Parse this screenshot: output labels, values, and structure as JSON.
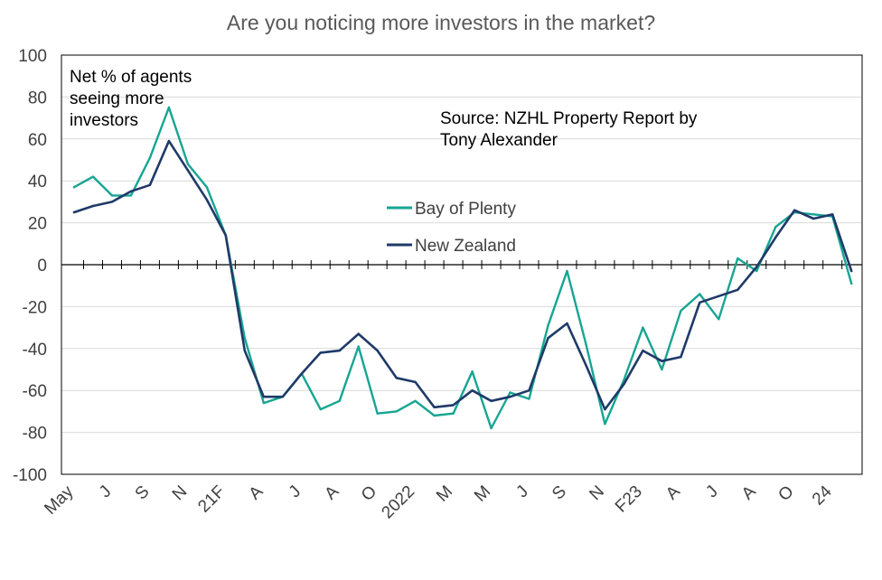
{
  "chart_data": {
    "type": "line",
    "title": "Are you noticing more investors in the market?",
    "xlabel": "",
    "ylabel": "",
    "ylim": [
      -100,
      100
    ],
    "yticks": [
      100,
      80,
      60,
      40,
      20,
      0,
      -20,
      -40,
      -60,
      -80,
      -100
    ],
    "grid": true,
    "legend_position": "center",
    "x_tick_labels": [
      {
        "label": "May",
        "index": 0
      },
      {
        "label": "J",
        "index": 2
      },
      {
        "label": "S",
        "index": 4
      },
      {
        "label": "N",
        "index": 6
      },
      {
        "label": "21F",
        "index": 8
      },
      {
        "label": "A",
        "index": 10
      },
      {
        "label": "J",
        "index": 12
      },
      {
        "label": "A",
        "index": 14
      },
      {
        "label": "O",
        "index": 16
      },
      {
        "label": "2022",
        "index": 18
      },
      {
        "label": "M",
        "index": 20
      },
      {
        "label": "M",
        "index": 22
      },
      {
        "label": "J",
        "index": 24
      },
      {
        "label": "S",
        "index": 26
      },
      {
        "label": "N",
        "index": 28
      },
      {
        "label": "F23",
        "index": 30
      },
      {
        "label": "A",
        "index": 32
      },
      {
        "label": "J",
        "index": 34
      },
      {
        "label": "A",
        "index": 36
      },
      {
        "label": "O",
        "index": 38
      },
      {
        "label": "24",
        "index": 40
      }
    ],
    "series": [
      {
        "name": "Bay of Plenty",
        "color": "#17a592",
        "values": [
          37,
          42,
          33,
          33,
          51,
          75,
          48,
          37,
          14,
          -35,
          -66,
          -63,
          -52,
          -69,
          -65,
          -39,
          -71,
          -70,
          -65,
          -72,
          -71,
          -51,
          -78,
          -61,
          -64,
          -29,
          -3,
          -38,
          -76,
          -55,
          -30,
          -50,
          -22,
          -14,
          -26,
          3,
          -3,
          18,
          25,
          24,
          23,
          -9
        ]
      },
      {
        "name": "New Zealand",
        "color": "#1f3a68",
        "values": [
          25,
          28,
          30,
          35,
          38,
          59,
          45,
          31,
          14,
          -41,
          -63,
          -63,
          -52,
          -42,
          -41,
          -33,
          -41,
          -54,
          -56,
          -68,
          -67,
          -60,
          -65,
          -63,
          -60,
          -35,
          -28,
          -48,
          -69,
          -57,
          -41,
          -46,
          -44,
          -18,
          -15,
          -12,
          -1,
          13,
          26,
          22,
          24,
          -3
        ]
      }
    ],
    "annotations": [
      {
        "id": "agents_note",
        "lines": [
          "Net % of agents",
          "seeing more",
          "investors"
        ]
      },
      {
        "id": "source_note",
        "lines": [
          "Source: NZHL Property Report by",
          "Tony Alexander"
        ]
      }
    ]
  }
}
